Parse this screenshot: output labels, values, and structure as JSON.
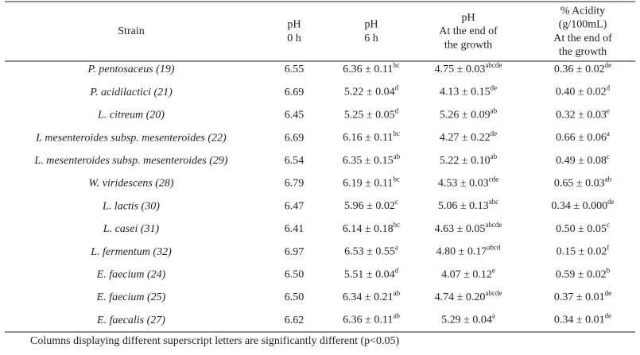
{
  "table": {
    "header": [
      [
        "Strain"
      ],
      [
        "pH",
        "0 h"
      ],
      [
        "pH",
        "6 h"
      ],
      [
        "pH",
        "At the end of",
        "the growth"
      ],
      [
        "% Acidity",
        "(g/100mL)",
        "At the end of",
        "the growth"
      ]
    ],
    "rows": [
      [
        "P. pentosaceus (19)",
        "6.55",
        {
          "text": "6.36 ± 0.11",
          "sup": "bc"
        },
        {
          "text": "4.75 ± 0.03",
          "sup": "abcde"
        },
        {
          "text": "0.36 ± 0.02",
          "sup": "de"
        }
      ],
      [
        "P. acidilactici (21)",
        "6.69",
        {
          "text": "5.22 ± 0.04",
          "sup": "d"
        },
        {
          "text": "4.13 ± 0.15",
          "sup": "de"
        },
        {
          "text": "0.40 ± 0.02",
          "sup": "d"
        }
      ],
      [
        "L. citreum (20)",
        "6.45",
        {
          "text": "5.25 ± 0.05",
          "sup": "d"
        },
        {
          "text": "5.26 ± 0.09",
          "sup": "ab"
        },
        {
          "text": "0.32 ± 0.03",
          "sup": "e"
        }
      ],
      [
        "L mesenteroides subsp. mesenteroides (22)",
        "6.69",
        {
          "text": "6.16 ± 0.11",
          "sup": "bc"
        },
        {
          "text": "4.27 ± 0.22",
          "sup": "de"
        },
        {
          "text": "0.66 ± 0.06",
          "sup": "a"
        }
      ],
      [
        "L. mesenteroides subsp. mesenteroides (29)",
        "6.54",
        {
          "text": "6.35 ± 0.15",
          "sup": "ab"
        },
        {
          "text": "5.22 ± 0.10",
          "sup": "ab"
        },
        {
          "text": "0.49 ± 0.08",
          "sup": "c"
        }
      ],
      [
        "W. viridescens (28)",
        "6.79",
        {
          "text": "6.19 ± 0.11",
          "sup": "bc"
        },
        {
          "text": "4.53 ± 0.03",
          "sup": "cde"
        },
        {
          "text": "0.65 ± 0.03",
          "sup": "ab"
        }
      ],
      [
        "L. lactis (30)",
        "6.47",
        {
          "text": "5.96 ± 0.02",
          "sup": "c"
        },
        {
          "text": "5.06 ± 0.13",
          "sup": "abc"
        },
        {
          "text": "0.34 ± 0.000",
          "sup": "de"
        }
      ],
      [
        "L. casei (31)",
        "6.41",
        {
          "text": "6.14 ± 0.18",
          "sup": "bc"
        },
        {
          "text": "4.63 ± 0.05",
          "sup": "abcde"
        },
        {
          "text": "0.50 ± 0.05",
          "sup": "c"
        }
      ],
      [
        "L. fermentum (32)",
        "6.97",
        {
          "text": "6.53 ± 0.55",
          "sup": "a"
        },
        {
          "text": "4.80 ± 0.17",
          "sup": "abcd"
        },
        {
          "text": "0.15 ± 0.02",
          "sup": "f"
        }
      ],
      [
        "E. faecium (24)",
        "6.50",
        {
          "text": "5.51 ± 0.04",
          "sup": "d"
        },
        {
          "text": "4.07 ± 0.12",
          "sup": "e"
        },
        {
          "text": "0.59 ± 0.02",
          "sup": "b"
        }
      ],
      [
        "E. faecium (25)",
        "6.50",
        {
          "text": "6.34 ± 0.21",
          "sup": "ab"
        },
        {
          "text": "4.74 ± 0.20",
          "sup": "abcde"
        },
        {
          "text": "0.37 ± 0.01",
          "sup": "de"
        }
      ],
      [
        "E. faecalis (27)",
        "6.62",
        {
          "text": "6.36 ± 0.11",
          "sup": "ab"
        },
        {
          "text": "5.29 ± 0.04",
          "sup": "a"
        },
        {
          "text": "0.34 ± 0.01",
          "sup": "de"
        }
      ]
    ],
    "footnote": "Columns displaying different superscript letters are significantly different (p<0.05)"
  }
}
